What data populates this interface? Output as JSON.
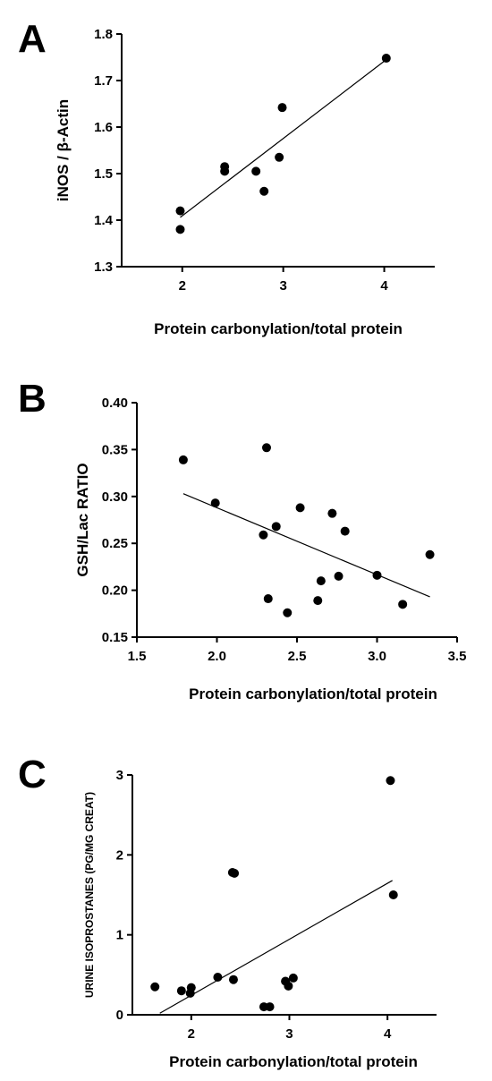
{
  "chart_data": [
    {
      "panel": "A",
      "type": "scatter",
      "xlabel": "Protein carbonylation/total protein",
      "ylabel": "iNOS / β-Actin",
      "xlim": [
        1.4,
        4.5
      ],
      "ylim": [
        1.3,
        1.8
      ],
      "xticks": [
        2,
        3,
        4
      ],
      "xtick_labels": [
        "2",
        "3",
        "4"
      ],
      "yticks": [
        1.3,
        1.4,
        1.5,
        1.6,
        1.7,
        1.8
      ],
      "ytick_labels": [
        "1.3",
        "1.4",
        "1.5",
        "1.6",
        "1.7",
        "1.8"
      ],
      "points": [
        {
          "x": 1.98,
          "y": 1.42
        },
        {
          "x": 1.98,
          "y": 1.38
        },
        {
          "x": 2.42,
          "y": 1.515
        },
        {
          "x": 2.42,
          "y": 1.505
        },
        {
          "x": 2.73,
          "y": 1.505
        },
        {
          "x": 2.81,
          "y": 1.462
        },
        {
          "x": 2.96,
          "y": 1.535
        },
        {
          "x": 2.99,
          "y": 1.642
        },
        {
          "x": 4.02,
          "y": 1.748
        }
      ],
      "fit_line": {
        "x": [
          1.98,
          4.02
        ],
        "y": [
          1.406,
          1.745
        ]
      }
    },
    {
      "panel": "B",
      "type": "scatter",
      "xlabel": "Protein carbonylation/total protein",
      "ylabel": "GSH/Lac RATIO",
      "xlim": [
        1.5,
        3.5
      ],
      "ylim": [
        0.15,
        0.4
      ],
      "xticks": [
        1.5,
        2.0,
        2.5,
        3.0,
        3.5
      ],
      "xtick_labels": [
        "1.5",
        "2.0",
        "2.5",
        "3.0",
        "3.5"
      ],
      "yticks": [
        0.15,
        0.2,
        0.25,
        0.3,
        0.35,
        0.4
      ],
      "ytick_labels": [
        "0.15",
        "0.20",
        "0.25",
        "0.30",
        "0.35",
        "0.40"
      ],
      "points": [
        {
          "x": 1.79,
          "y": 0.339
        },
        {
          "x": 1.99,
          "y": 0.293
        },
        {
          "x": 2.29,
          "y": 0.259
        },
        {
          "x": 2.31,
          "y": 0.352
        },
        {
          "x": 2.32,
          "y": 0.191
        },
        {
          "x": 2.37,
          "y": 0.268
        },
        {
          "x": 2.44,
          "y": 0.176
        },
        {
          "x": 2.52,
          "y": 0.288
        },
        {
          "x": 2.63,
          "y": 0.189
        },
        {
          "x": 2.65,
          "y": 0.21
        },
        {
          "x": 2.72,
          "y": 0.282
        },
        {
          "x": 2.76,
          "y": 0.215
        },
        {
          "x": 2.8,
          "y": 0.263
        },
        {
          "x": 3.0,
          "y": 0.216
        },
        {
          "x": 3.16,
          "y": 0.185
        },
        {
          "x": 3.33,
          "y": 0.238
        }
      ],
      "fit_line": {
        "x": [
          1.79,
          3.33
        ],
        "y": [
          0.303,
          0.193
        ]
      }
    },
    {
      "panel": "C",
      "type": "scatter",
      "xlabel": "Protein carbonylation/total protein",
      "ylabel": "URINE ISOPROSTANES (PG/MG CREAT)",
      "xlim": [
        1.4,
        4.5
      ],
      "ylim": [
        0,
        3
      ],
      "xticks": [
        2,
        3,
        4
      ],
      "xtick_labels": [
        "2",
        "3",
        "4"
      ],
      "yticks": [
        0,
        1,
        2,
        3
      ],
      "ytick_labels": [
        "0",
        "1",
        "2",
        "3"
      ],
      "points": [
        {
          "x": 1.63,
          "y": 0.35
        },
        {
          "x": 1.9,
          "y": 0.3
        },
        {
          "x": 1.99,
          "y": 0.27
        },
        {
          "x": 2.0,
          "y": 0.34
        },
        {
          "x": 2.27,
          "y": 0.47
        },
        {
          "x": 2.42,
          "y": 1.78
        },
        {
          "x": 2.44,
          "y": 1.77
        },
        {
          "x": 2.43,
          "y": 0.44
        },
        {
          "x": 2.74,
          "y": 0.1
        },
        {
          "x": 2.8,
          "y": 0.1
        },
        {
          "x": 2.96,
          "y": 0.42
        },
        {
          "x": 2.99,
          "y": 0.36
        },
        {
          "x": 3.04,
          "y": 0.46
        },
        {
          "x": 4.03,
          "y": 2.93
        },
        {
          "x": 4.06,
          "y": 1.5
        }
      ],
      "fit_line": {
        "x": [
          1.68,
          4.05
        ],
        "y": [
          0.02,
          1.68
        ]
      }
    }
  ]
}
